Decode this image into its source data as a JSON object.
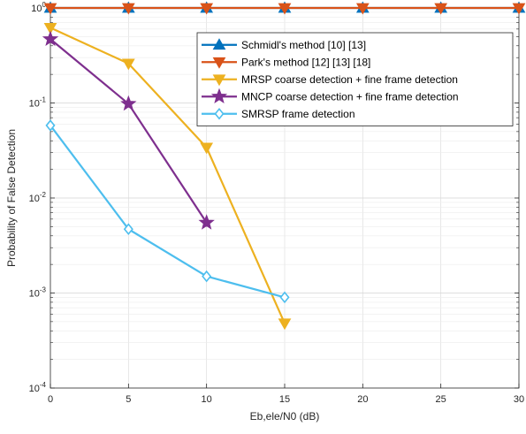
{
  "chart_data": {
    "type": "line",
    "xlabel": "Eb,ele/N0 (dB)",
    "ylabel": "Probability of False Detection",
    "xlim": [
      0,
      30
    ],
    "ylim": [
      0.0001,
      1
    ],
    "yscale": "log",
    "grid": true,
    "legend_position": "top-right",
    "x_ticks": [
      {
        "value": 0,
        "label": "0"
      },
      {
        "value": 5,
        "label": "5"
      },
      {
        "value": 10,
        "label": "10"
      },
      {
        "value": 15,
        "label": "15"
      },
      {
        "value": 20,
        "label": "20"
      },
      {
        "value": 25,
        "label": "25"
      },
      {
        "value": 30,
        "label": "30"
      }
    ],
    "y_ticks": [
      {
        "value": 1,
        "base": "10",
        "exp": "0"
      },
      {
        "value": 0.1,
        "base": "10",
        "exp": "-1"
      },
      {
        "value": 0.01,
        "base": "10",
        "exp": "-2"
      },
      {
        "value": 0.001,
        "base": "10",
        "exp": "-3"
      },
      {
        "value": 0.0001,
        "base": "10",
        "exp": "-4"
      }
    ],
    "series": [
      {
        "name": "Schmidl's method [10] [13]",
        "color": "#0072BD",
        "marker": "triangle-up",
        "x": [
          0,
          5,
          10,
          15,
          20,
          25,
          30
        ],
        "y": [
          1,
          1,
          1,
          1,
          1,
          1,
          1
        ]
      },
      {
        "name": "Park's method [12] [13] [18]",
        "color": "#D95319",
        "marker": "triangle-down",
        "x": [
          0,
          5,
          10,
          15,
          20,
          25,
          30
        ],
        "y": [
          1,
          1,
          1,
          1,
          1,
          1,
          1
        ]
      },
      {
        "name": "MRSP coarse detection + fine frame detection",
        "color": "#EDB120",
        "marker": "triangle-down",
        "x": [
          0,
          5,
          10,
          15
        ],
        "y": [
          0.62,
          0.26,
          0.034,
          0.00048
        ]
      },
      {
        "name": "MNCP coarse detection + fine frame detection",
        "color": "#7E2F8E",
        "marker": "star",
        "x": [
          0,
          5,
          10
        ],
        "y": [
          0.47,
          0.098,
          0.0055
        ]
      },
      {
        "name": "SMRSP frame detection",
        "color": "#4DBEEE",
        "marker": "diamond",
        "x": [
          0,
          5,
          10,
          15
        ],
        "y": [
          0.058,
          0.0047,
          0.0015,
          0.0009
        ]
      }
    ]
  }
}
